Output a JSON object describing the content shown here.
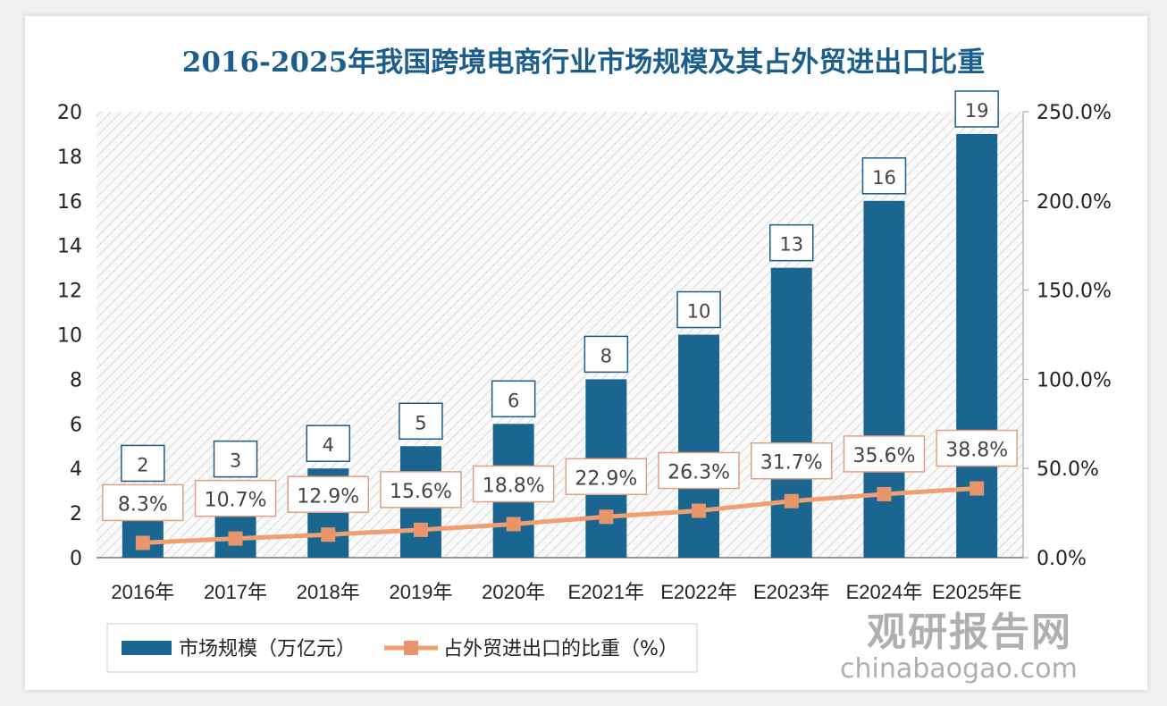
{
  "chart_data": {
    "type": "bar",
    "title": "2016-2025年我国跨境电商行业市场规模及其占外贸进出口比重",
    "categories": [
      "2016年",
      "2017年",
      "2018年",
      "2019年",
      "2020年",
      "E2021年",
      "E2022年",
      "E2023年",
      "E2024年",
      "E2025年E"
    ],
    "series": [
      {
        "name": "市场规模（万亿元）",
        "type": "bar",
        "axis": "left",
        "values": [
          2,
          3,
          4,
          5,
          6,
          8,
          10,
          13,
          16,
          19
        ],
        "labels": [
          "2",
          "3",
          "4",
          "5",
          "6",
          "8",
          "10",
          "13",
          "16",
          "19"
        ],
        "color": "#1a6691"
      },
      {
        "name": "占外贸进出口的比重（%）",
        "type": "line",
        "axis": "right",
        "values": [
          8.3,
          10.7,
          12.9,
          15.6,
          18.8,
          22.9,
          26.3,
          31.7,
          35.6,
          38.8
        ],
        "labels": [
          "8.3%",
          "10.7%",
          "12.9%",
          "15.6%",
          "18.8%",
          "22.9%",
          "26.3%",
          "31.7%",
          "35.6%",
          "38.8%"
        ],
        "color": "#f0a070"
      }
    ],
    "ylim": [
      0,
      20
    ],
    "y_ticks": [
      "0",
      "2",
      "4",
      "6",
      "8",
      "10",
      "12",
      "14",
      "16",
      "18",
      "20"
    ],
    "y2lim": [
      0,
      250
    ],
    "y2_ticks": [
      "0.0%",
      "50.0%",
      "100.0%",
      "150.0%",
      "200.0%",
      "250.0%"
    ],
    "legend": "bottom",
    "grid": false
  },
  "watermark": {
    "cn": "观研报告网",
    "en": "chinabaogao.com"
  }
}
